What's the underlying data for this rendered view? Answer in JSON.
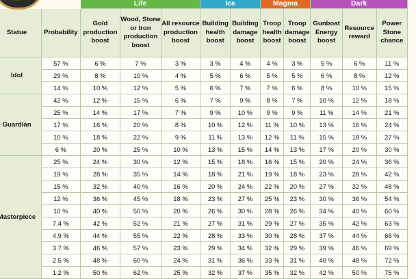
{
  "categories": [
    {
      "label": "Life",
      "color": "#64b845"
    },
    {
      "label": "Ice",
      "color": "#32a8c9"
    },
    {
      "label": "Magma",
      "color": "#e06a2a"
    },
    {
      "label": "Dark",
      "color": "#b353b8"
    }
  ],
  "headers": {
    "statue": "Statue",
    "probability": "Probability",
    "gold": "Gold production boost",
    "wood": "Wood, Stone or Iron production boost",
    "all": "All resource production boost",
    "bhealth": "Building health boost",
    "bdamage": "Building damage boost",
    "thealth": "Troop health boost",
    "tdamage": "Troop damage boost",
    "gunboat": "Gunboat Energy boost",
    "resource": "Resource reward",
    "power": "Power Stone chance"
  },
  "groups": [
    {
      "name": "Idol",
      "rows": [
        [
          "57 %",
          "6 %",
          "7 %",
          "3 %",
          "3 %",
          "4 %",
          "4 %",
          "3 %",
          "5 %",
          "6 %",
          "11 %"
        ],
        [
          "29 %",
          "8 %",
          "10 %",
          "4 %",
          "5 %",
          "6 %",
          "5 %",
          "5 %",
          "6 %",
          "8 %",
          "12 %"
        ],
        [
          "14 %",
          "10 %",
          "12 %",
          "5 %",
          "6 %",
          "7 %",
          "7 %",
          "6 %",
          "8 %",
          "10 %",
          "15 %"
        ]
      ]
    },
    {
      "name": "Guardian",
      "rows": [
        [
          "42 %",
          "12 %",
          "15 %",
          "6 %",
          "7 %",
          "9 %",
          "8 %",
          "7 %",
          "10 %",
          "12 %",
          "18 %"
        ],
        [
          "25 %",
          "14 %",
          "17 %",
          "7 %",
          "9 %",
          "10 %",
          "9 %",
          "9 %",
          "11 %",
          "14 %",
          "21 %"
        ],
        [
          "17 %",
          "16 %",
          "20 %",
          "8 %",
          "10 %",
          "12 %",
          "11 %",
          "10 %",
          "13 %",
          "16 %",
          "24 %"
        ],
        [
          "10 %",
          "18 %",
          "22 %",
          "9 %",
          "11 %",
          "13 %",
          "12 %",
          "11 %",
          "15 %",
          "18 %",
          "27 %"
        ],
        [
          "6 %",
          "20 %",
          "25 %",
          "10 %",
          "13 %",
          "15 %",
          "14 %",
          "13 %",
          "17 %",
          "20 %",
          "30 %"
        ]
      ]
    },
    {
      "name": "Masterpiece",
      "rows": [
        [
          "25 %",
          "24 %",
          "30 %",
          "12 %",
          "15 %",
          "18 %",
          "16 %",
          "15 %",
          "20 %",
          "24 %",
          "36 %"
        ],
        [
          "19 %",
          "28 %",
          "35 %",
          "14 %",
          "18 %",
          "21 %",
          "19 %",
          "18 %",
          "23 %",
          "28 %",
          "42 %"
        ],
        [
          "15 %",
          "32 %",
          "40 %",
          "16 %",
          "20 %",
          "24 %",
          "22 %",
          "20 %",
          "27 %",
          "32 %",
          "48 %"
        ],
        [
          "12 %",
          "36 %",
          "45 %",
          "18 %",
          "23 %",
          "27 %",
          "25 %",
          "23 %",
          "30 %",
          "36 %",
          "54 %"
        ],
        [
          "10 %",
          "40 %",
          "50 %",
          "20 %",
          "26 %",
          "30 %",
          "28 %",
          "26 %",
          "34 %",
          "40 %",
          "60 %"
        ],
        [
          "7.4 %",
          "42 %",
          "52 %",
          "21 %",
          "27 %",
          "31 %",
          "29 %",
          "27 %",
          "35 %",
          "42 %",
          "63 %"
        ],
        [
          "4.9 %",
          "44 %",
          "55 %",
          "22 %",
          "28 %",
          "33 %",
          "30 %",
          "28 %",
          "37 %",
          "44 %",
          "66 %"
        ],
        [
          "3.7 %",
          "46 %",
          "57 %",
          "23 %",
          "29 %",
          "34 %",
          "32 %",
          "29 %",
          "39 %",
          "46 %",
          "69 %"
        ],
        [
          "2.5 %",
          "48 %",
          "60 %",
          "24 %",
          "31 %",
          "36 %",
          "33 %",
          "31 %",
          "40 %",
          "48 %",
          "72 %"
        ],
        [
          "1.2 %",
          "50 %",
          "62 %",
          "25 %",
          "32 %",
          "37 %",
          "35 %",
          "32 %",
          "42 %",
          "50 %",
          "75 %"
        ]
      ]
    }
  ]
}
